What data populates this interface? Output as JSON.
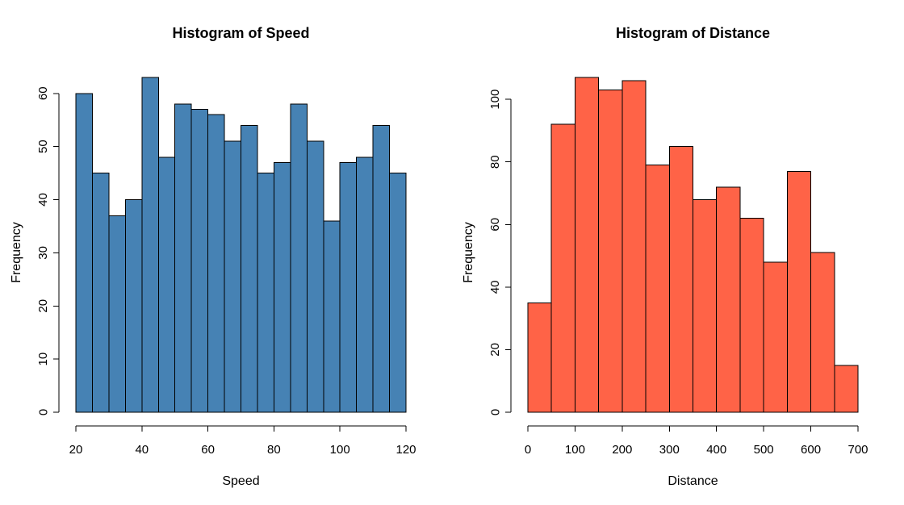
{
  "page": {
    "background_color": "#FFFFFF",
    "text_color": "#000000",
    "axis_color": "#000000"
  },
  "chart_data": [
    {
      "type": "bar",
      "subtype": "histogram",
      "title": "Histogram of Speed",
      "xlabel": "Speed",
      "ylabel": "Frequency",
      "bar_fill": "#4682B4",
      "bar_stroke": "#000000",
      "bin_start": 20,
      "bin_width": 5,
      "values": [
        60,
        45,
        37,
        40,
        63,
        48,
        58,
        57,
        56,
        51,
        54,
        45,
        47,
        58,
        51,
        36,
        47,
        48,
        54,
        45
      ],
      "x_ticks": [
        20,
        40,
        60,
        80,
        100,
        120
      ],
      "y_ticks": [
        0,
        10,
        20,
        30,
        40,
        50,
        60
      ],
      "xlim": [
        20,
        120
      ],
      "ylim": [
        0,
        63
      ],
      "grid": false,
      "legend": "none"
    },
    {
      "type": "bar",
      "subtype": "histogram",
      "title": "Histogram of Distance",
      "xlabel": "Distance",
      "ylabel": "Frequency",
      "bar_fill": "#FF6347",
      "bar_stroke": "#000000",
      "bin_start": 0,
      "bin_width": 50,
      "values": [
        35,
        92,
        107,
        103,
        106,
        79,
        85,
        68,
        72,
        62,
        48,
        77,
        51,
        15
      ],
      "x_ticks": [
        0,
        100,
        200,
        300,
        400,
        500,
        600,
        700
      ],
      "y_ticks": [
        0,
        20,
        40,
        60,
        80,
        100
      ],
      "xlim": [
        0,
        700
      ],
      "ylim": [
        0,
        107
      ],
      "grid": false,
      "legend": "none"
    }
  ]
}
